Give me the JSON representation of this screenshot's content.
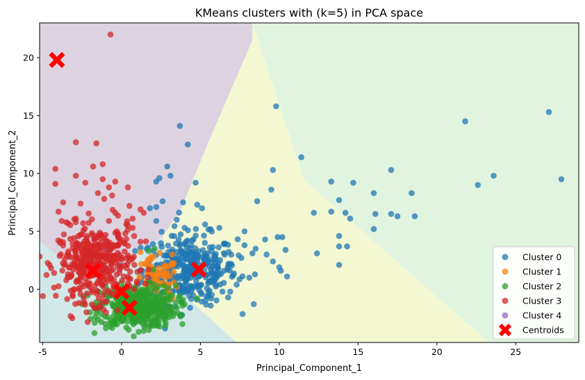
{
  "chart_data": {
    "type": "scatter",
    "title": "KMeans clusters with (k=5) in PCA space",
    "xlabel": "Principal_Component_1",
    "ylabel": "Principal_Component_2",
    "xlim": [
      -5.2,
      29.0
    ],
    "ylim": [
      -4.6,
      23.0
    ],
    "xticks": [
      -5,
      0,
      5,
      10,
      15,
      20,
      25
    ],
    "yticks": [
      0,
      5,
      10,
      15,
      20
    ],
    "grid": false,
    "legend_position": "lower right",
    "background_regions": [
      {
        "name": "Cluster 3 region",
        "color": "#dcd2e0"
      },
      {
        "name": "Cluster 0 region",
        "color": "#f3f8d2"
      },
      {
        "name": "Outlier region",
        "color": "#e1f4df"
      },
      {
        "name": "Cluster 2 region",
        "color": "#d2e8e8"
      }
    ],
    "series": [
      {
        "name": "Cluster 0",
        "color": "#1f77b4",
        "points": [
          [
            9.8,
            15.8
          ],
          [
            27.1,
            15.3
          ],
          [
            21.8,
            14.5
          ],
          [
            3.7,
            14.1
          ],
          [
            4.2,
            12.5
          ],
          [
            11.4,
            11.4
          ],
          [
            2.9,
            10.6
          ],
          [
            9.6,
            10.3
          ],
          [
            17.1,
            10.3
          ],
          [
            16.0,
            8.3
          ],
          [
            18.4,
            8.3
          ],
          [
            4.7,
            9.2
          ],
          [
            23.6,
            9.8
          ],
          [
            22.6,
            9.0
          ],
          [
            27.9,
            9.5
          ],
          [
            13.3,
            9.3
          ],
          [
            14.7,
            9.2
          ],
          [
            9.5,
            8.6
          ],
          [
            8.6,
            7.6
          ],
          [
            13.8,
            7.7
          ],
          [
            12.2,
            6.6
          ],
          [
            13.3,
            6.7
          ],
          [
            14.2,
            6.6
          ],
          [
            16.1,
            6.5
          ],
          [
            17.1,
            6.5
          ],
          [
            17.5,
            6.3
          ],
          [
            18.6,
            6.3
          ],
          [
            14.5,
            6.1
          ],
          [
            16.0,
            5.2
          ],
          [
            13.8,
            4.6
          ],
          [
            12.4,
            3.1
          ],
          [
            13.8,
            3.7
          ],
          [
            14.3,
            3.7
          ],
          [
            10.2,
            4.5
          ],
          [
            10.4,
            3.4
          ],
          [
            10.1,
            1.6
          ],
          [
            10.5,
            1.1
          ],
          [
            13.8,
            2.1
          ],
          [
            7.8,
            3.8
          ],
          [
            8.5,
            3.5
          ],
          [
            9.2,
            3.0
          ],
          [
            6.8,
            2.2
          ],
          [
            3.1,
            9.8
          ],
          [
            2.2,
            9.3
          ],
          [
            2.4,
            9.6
          ],
          [
            2.6,
            7.6
          ],
          [
            2.2,
            7.1
          ],
          [
            1.8,
            7.0
          ],
          [
            3.9,
            7.5
          ],
          [
            4.8,
            7.3
          ],
          [
            5.1,
            7.0
          ],
          [
            3.5,
            6.0
          ],
          [
            2.2,
            5.9
          ],
          [
            5.3,
            5.6
          ],
          [
            4.0,
            5.3
          ],
          [
            7.8,
            5.0
          ],
          [
            6.2,
            5.3
          ],
          [
            9.9,
            4.5
          ],
          [
            9.1,
            4.3
          ],
          [
            8.3,
            3.1
          ],
          [
            7.6,
            2.7
          ],
          [
            9.6,
            2.4
          ],
          [
            10.0,
            1.9
          ],
          [
            8.1,
            1.0
          ],
          [
            7.3,
            0.4
          ],
          [
            6.4,
            -0.2
          ],
          [
            5.5,
            -0.6
          ]
        ],
        "cloud": {
          "cx": 4.3,
          "cy": 1.7,
          "sx": 1.5,
          "sy": 1.5,
          "n": 380
        }
      },
      {
        "name": "Cluster 1",
        "color": "#ff7f0e",
        "points": [
          [
            3.2,
            3.0
          ],
          [
            2.8,
            1.2
          ],
          [
            3.3,
            0.6
          ],
          [
            3.5,
            0.2
          ],
          [
            3.1,
            -0.4
          ],
          [
            2.6,
            -0.8
          ],
          [
            2.9,
            0.0
          ],
          [
            2.4,
            0.5
          ],
          [
            1.9,
            1.3
          ],
          [
            1.5,
            2.2
          ],
          [
            1.7,
            2.6
          ],
          [
            1.2,
            3.2
          ],
          [
            0.7,
            2.7
          ],
          [
            0.3,
            -0.3
          ],
          [
            -0.2,
            -0.8
          ],
          [
            -0.4,
            -1.6
          ]
        ],
        "cloud": {
          "cx": 2.2,
          "cy": 0.7,
          "sx": 0.7,
          "sy": 1.0,
          "n": 60
        }
      },
      {
        "name": "Cluster 2",
        "color": "#2ca02c",
        "points": [
          [
            1.4,
            -3.6
          ],
          [
            3.5,
            -1.6
          ],
          [
            3.8,
            -2.2
          ],
          [
            2.8,
            -2.9
          ],
          [
            1.8,
            -3.2
          ],
          [
            -0.5,
            -2.9
          ],
          [
            -1.5,
            -2.6
          ],
          [
            -2.0,
            -2.0
          ],
          [
            -1.7,
            -2.9
          ],
          [
            0.3,
            -3.3
          ],
          [
            2.1,
            3.5
          ],
          [
            1.7,
            3.3
          ],
          [
            2.0,
            1.7
          ],
          [
            3.1,
            -0.9
          ],
          [
            4.0,
            -1.3
          ],
          [
            -1.0,
            -1.2
          ]
        ],
        "cloud": {
          "cx": 1.0,
          "cy": -1.5,
          "sx": 1.2,
          "sy": 0.9,
          "n": 450
        }
      },
      {
        "name": "Cluster 3",
        "color": "#d62728",
        "points": [
          [
            -0.7,
            22.0
          ],
          [
            -2.9,
            12.7
          ],
          [
            -1.6,
            12.6
          ],
          [
            -1.2,
            10.8
          ],
          [
            -4.2,
            10.4
          ],
          [
            -1.8,
            10.6
          ],
          [
            -2.9,
            9.8
          ],
          [
            -1.2,
            9.5
          ],
          [
            -2.3,
            9.2
          ],
          [
            -4.2,
            9.1
          ],
          [
            -0.4,
            9.3
          ],
          [
            -0.8,
            8.8
          ],
          [
            0.4,
            8.8
          ],
          [
            -0.6,
            8.1
          ],
          [
            -1.5,
            8.3
          ],
          [
            -1.1,
            7.8
          ],
          [
            -3.7,
            7.5
          ],
          [
            -2.6,
            7.4
          ],
          [
            0.5,
            7.2
          ],
          [
            -4.0,
            6.7
          ],
          [
            -3.4,
            5.7
          ],
          [
            -3.8,
            5.9
          ],
          [
            -2.9,
            6.1
          ],
          [
            1.2,
            6.9
          ],
          [
            0.7,
            6.1
          ],
          [
            1.4,
            6.6
          ],
          [
            -0.4,
            6.6
          ],
          [
            -0.8,
            5.9
          ],
          [
            0.3,
            5.6
          ],
          [
            0.7,
            5.3
          ],
          [
            -0.3,
            5.0
          ],
          [
            -3.9,
            4.0
          ],
          [
            -3.4,
            3.1
          ],
          [
            -3.6,
            2.6
          ],
          [
            -3.0,
            2.2
          ],
          [
            -3.4,
            1.3
          ],
          [
            -2.7,
            0.1
          ],
          [
            -3.1,
            -0.5
          ],
          [
            -2.4,
            -0.8
          ],
          [
            0.8,
            4.6
          ],
          [
            1.2,
            4.1
          ],
          [
            1.0,
            1.5
          ]
        ],
        "cloud": {
          "cx": -1.6,
          "cy": 2.2,
          "sx": 1.2,
          "sy": 1.6,
          "n": 420
        }
      },
      {
        "name": "Cluster 4",
        "color": "#9467bd",
        "points": []
      }
    ],
    "centroids": {
      "name": "Centroids",
      "color": "#ff0000",
      "marker": "X",
      "points": [
        [
          -4.1,
          19.8
        ],
        [
          -1.8,
          1.6
        ],
        [
          0.0,
          -0.2
        ],
        [
          0.5,
          -1.6
        ],
        [
          4.9,
          1.7
        ]
      ]
    },
    "legend": [
      "Cluster 0",
      "Cluster 1",
      "Cluster 2",
      "Cluster 3",
      "Cluster 4",
      "Centroids"
    ]
  }
}
